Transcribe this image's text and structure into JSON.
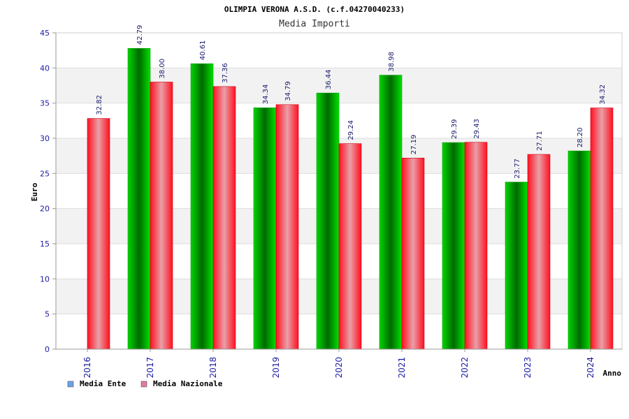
{
  "chart_data": {
    "type": "bar",
    "title": "OLIMPIA VERONA A.S.D. (c.f.04270040233)",
    "subtitle": "Media Importi",
    "xlabel": "Anno",
    "ylabel": "Euro",
    "ylim": [
      0,
      45
    ],
    "yticks": [
      0,
      5,
      10,
      15,
      20,
      25,
      30,
      35,
      40,
      45
    ],
    "categories": [
      "2016",
      "2017",
      "2018",
      "2019",
      "2020",
      "2021",
      "2022",
      "2023",
      "2024"
    ],
    "series": [
      {
        "name": "Media Ente",
        "color": "#00c000",
        "legend_color": "#6ea0e8",
        "values": [
          null,
          42.79,
          40.61,
          34.34,
          36.44,
          38.98,
          29.39,
          23.77,
          28.2
        ],
        "labels": [
          null,
          "42.79",
          "40.61",
          "34.34",
          "36.44",
          "38.98",
          "29.39",
          "23.77",
          "28.20"
        ]
      },
      {
        "name": "Media Nazionale",
        "color": "#ff1a2a",
        "legend_color": "#e07aa8",
        "values": [
          32.82,
          38.0,
          37.36,
          34.79,
          29.24,
          27.19,
          29.43,
          27.71,
          34.32
        ],
        "labels": [
          "32.82",
          "38.00",
          "37.36",
          "34.79",
          "29.24",
          "27.19",
          "29.43",
          "27.71",
          "34.32"
        ]
      }
    ],
    "grid": true,
    "legend": "bottom-left"
  }
}
